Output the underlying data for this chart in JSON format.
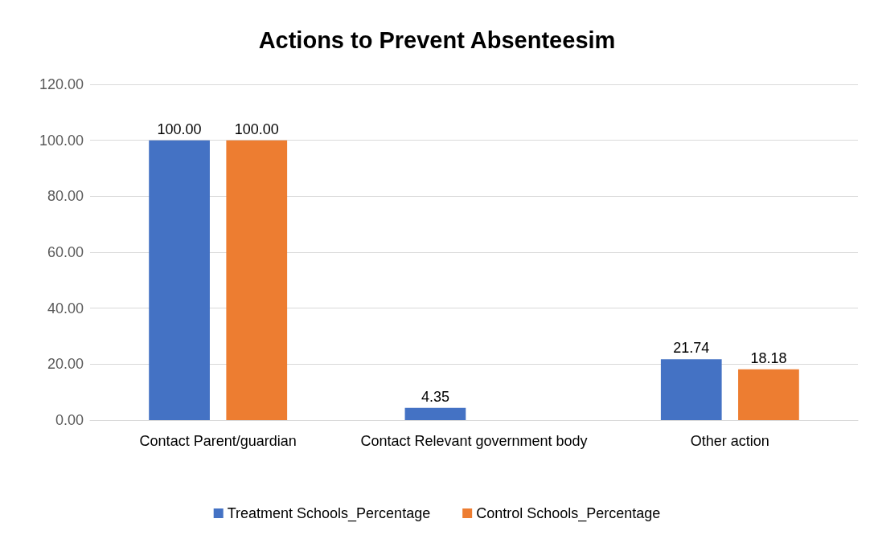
{
  "chart_data": {
    "type": "bar",
    "title": "Actions to Prevent Absenteesim",
    "categories": [
      "Contact Parent/guardian",
      "Contact Relevant government body",
      "Other action"
    ],
    "series": [
      {
        "name": "Treatment Schools_Percentage",
        "color": "#4472c4",
        "values": [
          100,
          4.35,
          21.74
        ],
        "value_labels": [
          "100.00",
          "4.35",
          "21.74"
        ]
      },
      {
        "name": "Control Schools_Percentage",
        "color": "#ed7d31",
        "values": [
          100,
          null,
          18.18
        ],
        "value_labels": [
          "100.00",
          null,
          "18.18"
        ]
      }
    ],
    "ylim": [
      0,
      120
    ],
    "yticks": [
      {
        "value": 0,
        "label": "0.00"
      },
      {
        "value": 20,
        "label": "20.00"
      },
      {
        "value": 40,
        "label": "40.00"
      },
      {
        "value": 60,
        "label": "60.00"
      },
      {
        "value": 80,
        "label": "80.00"
      },
      {
        "value": 100,
        "label": "100.00"
      },
      {
        "value": 120,
        "label": "120.00"
      }
    ],
    "grid": "y",
    "legend": "bottom"
  }
}
